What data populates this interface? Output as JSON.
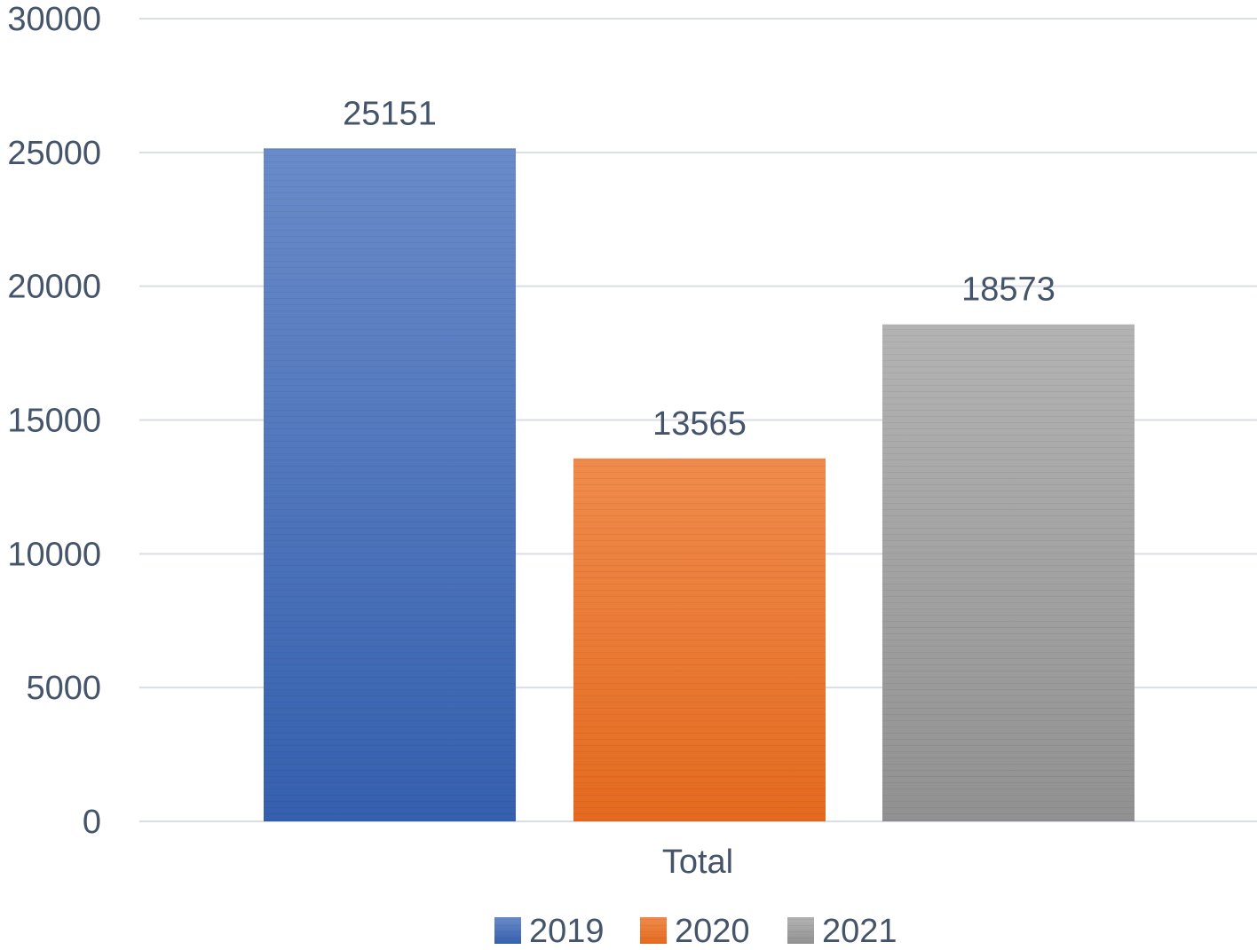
{
  "chart_data": {
    "type": "bar",
    "categories": [
      "Total"
    ],
    "series": [
      {
        "name": "2019",
        "values": [
          25151
        ],
        "color": "#4472c4"
      },
      {
        "name": "2020",
        "values": [
          13565
        ],
        "color": "#ed7d31"
      },
      {
        "name": "2021",
        "values": [
          18573
        ],
        "color": "#a5a5a5"
      }
    ],
    "ylim": [
      0,
      30000
    ],
    "yticks": [
      "0",
      "5000",
      "10000",
      "15000",
      "20000",
      "25000",
      "30000"
    ],
    "grid": true,
    "legend": "bottom",
    "data_labels": true
  }
}
